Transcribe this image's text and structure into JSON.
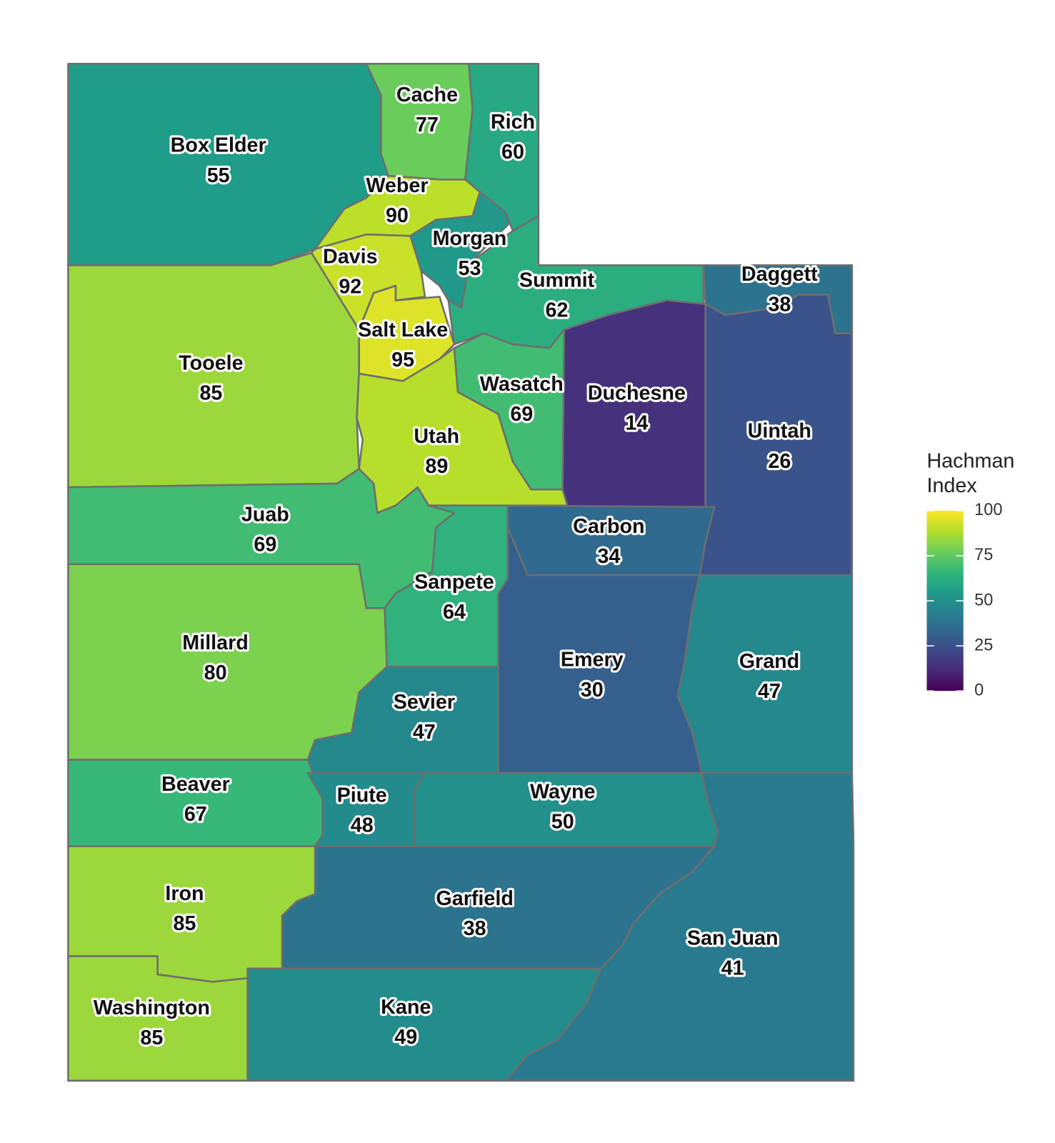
{
  "chart_data": {
    "type": "choropleth",
    "legend_title": "Hachman Index",
    "regions": [
      "Box Elder",
      "Cache",
      "Rich",
      "Weber",
      "Morgan",
      "Davis",
      "Summit",
      "Salt Lake",
      "Tooele",
      "Utah",
      "Wasatch",
      "Daggett",
      "Duchesne",
      "Uintah",
      "Juab",
      "Sanpete",
      "Carbon",
      "Emery",
      "Grand",
      "Millard",
      "Sevier",
      "Beaver",
      "Piute",
      "Wayne",
      "Garfield",
      "San Juan",
      "Iron",
      "Washington",
      "Kane"
    ],
    "values": [
      55,
      77,
      60,
      90,
      53,
      92,
      62,
      95,
      85,
      89,
      69,
      38,
      14,
      26,
      69,
      64,
      34,
      30,
      47,
      80,
      47,
      67,
      48,
      50,
      38,
      41,
      85,
      85,
      49
    ],
    "colorbar_lim": [
      0,
      100
    ],
    "colorbar_ticks": [
      0,
      25,
      50,
      75,
      100
    ],
    "colormap": "viridis"
  }
}
